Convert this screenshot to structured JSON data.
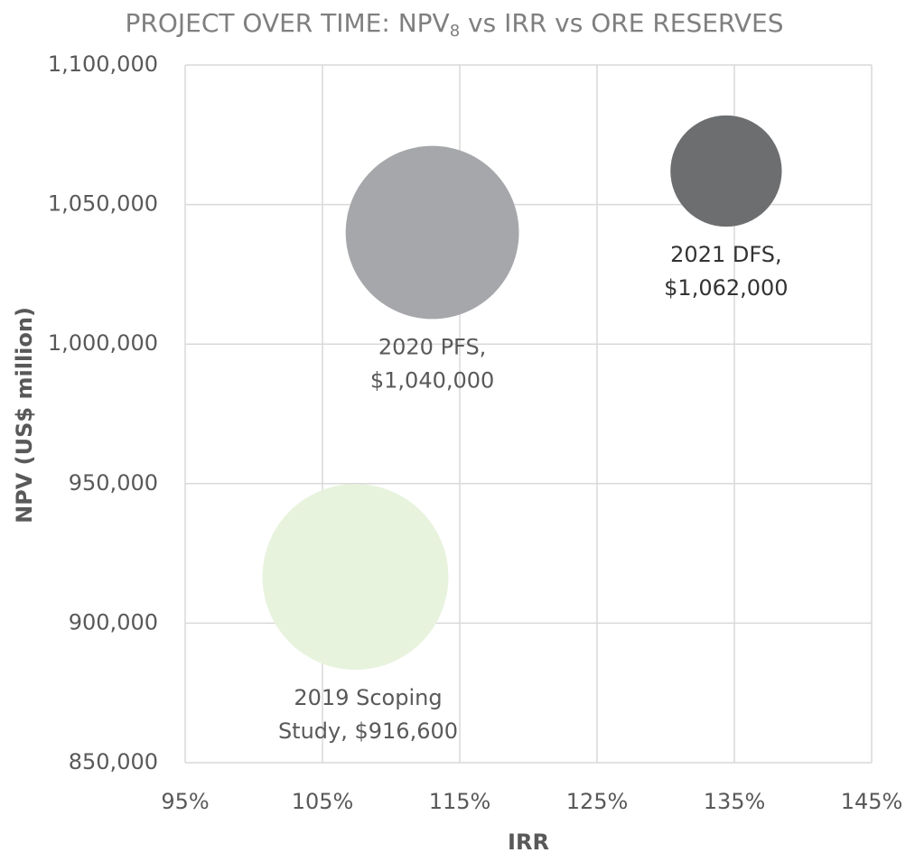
{
  "chart_data": {
    "type": "bubble",
    "title": [
      "PROJECT OVER TIME: NPV",
      "8",
      " vs IRR vs ORE RESERVES"
    ],
    "x_label": "IRR",
    "y_label": "NPV (US$ million)",
    "xlim": [
      95,
      145
    ],
    "xticks": [
      {
        "value": 95,
        "label": "95%"
      },
      {
        "value": 105,
        "label": "105%"
      },
      {
        "value": 115,
        "label": "115%"
      },
      {
        "value": 125,
        "label": "125%"
      },
      {
        "value": 135,
        "label": "135%"
      },
      {
        "value": 145,
        "label": "145%"
      }
    ],
    "ylim": [
      850000,
      1100000
    ],
    "yticks": [
      {
        "value": 850000,
        "label": "850,000"
      },
      {
        "value": 900000,
        "label": "900,000"
      },
      {
        "value": 950000,
        "label": "950,000"
      },
      {
        "value": 1000000,
        "label": "1,000,000"
      },
      {
        "value": 1050000,
        "label": "1,050,000"
      },
      {
        "value": 1100000,
        "label": "1,100,000"
      }
    ],
    "grid": true,
    "x": [
      107.4,
      113,
      134.4
    ],
    "values": [
      916600,
      1040000,
      1062000
    ],
    "sizes": [
      106,
      92,
      38
    ],
    "colors": [
      "#e8f3de",
      "#a6a7aa",
      "#6d6e70"
    ],
    "labels": [
      [
        "2019 Scoping",
        "Study,  $916,600"
      ],
      [
        "2020 PFS,",
        "$1,040,000"
      ],
      [
        "2021 DFS,",
        "$1,062,000"
      ]
    ]
  }
}
